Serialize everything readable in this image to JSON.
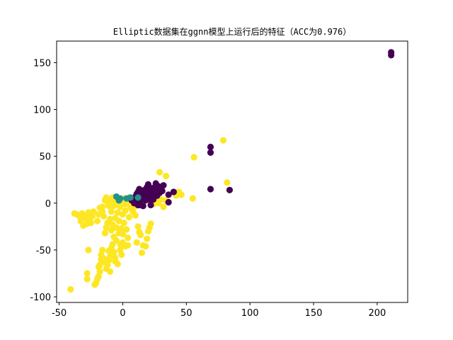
{
  "chart_data": {
    "type": "scatter",
    "title": "Elliptic数据集在ggnn模型上运行后的特征（ACC为0.976）",
    "xlabel": "",
    "ylabel": "",
    "xlim": [
      -52,
      224
    ],
    "ylim": [
      -106,
      173
    ],
    "xticks": [
      -50,
      0,
      50,
      100,
      150,
      200
    ],
    "yticks": [
      -100,
      -50,
      0,
      50,
      100,
      150
    ],
    "xtick_labels": [
      "-50",
      "0",
      "50",
      "100",
      "150",
      "200"
    ],
    "ytick_labels": [
      "-100",
      "-50",
      "0",
      "50",
      "100",
      "150"
    ],
    "grid": false,
    "legend": "none",
    "colors": {
      "yellow": "#fde725",
      "purple": "#440154",
      "teal": "#21918c"
    },
    "series": [
      {
        "color": "#fde725",
        "points": [
          [
            -41,
            -92
          ],
          [
            -38,
            -11
          ],
          [
            -36,
            -12
          ],
          [
            -34,
            -14
          ],
          [
            -33,
            -19
          ],
          [
            -32,
            -11
          ],
          [
            -31,
            -24
          ],
          [
            -30,
            -16
          ],
          [
            -29,
            -13
          ],
          [
            -28,
            -22
          ],
          [
            -27,
            -50
          ],
          [
            -28,
            -75
          ],
          [
            -28,
            -81
          ],
          [
            -27,
            -10
          ],
          [
            -26,
            -17
          ],
          [
            -25,
            -21
          ],
          [
            -24,
            -14
          ],
          [
            -23,
            -9
          ],
          [
            -22,
            -87
          ],
          [
            -21,
            -85
          ],
          [
            -20,
            -81
          ],
          [
            -19,
            -78
          ],
          [
            -18,
            -73
          ],
          [
            -18,
            -66
          ],
          [
            -17,
            -60
          ],
          [
            -17,
            -55
          ],
          [
            -16,
            -50
          ],
          [
            -19,
            -68
          ],
          [
            -15,
            -59
          ],
          [
            -14,
            -63
          ],
          [
            -13,
            -70
          ],
          [
            -12,
            -66
          ],
          [
            -11,
            -61
          ],
          [
            -10,
            -57
          ],
          [
            -11,
            -51
          ],
          [
            -9,
            -48
          ],
          [
            -8,
            -55
          ],
          [
            -7,
            -52
          ],
          [
            -6,
            -58
          ],
          [
            -8,
            -44
          ],
          [
            -20,
            -19
          ],
          [
            -19,
            -12
          ],
          [
            -18,
            -5
          ],
          [
            -16,
            -9
          ],
          [
            -15,
            -14
          ],
          [
            -14,
            -32
          ],
          [
            -13,
            -26
          ],
          [
            -12,
            -21
          ],
          [
            -11,
            -3
          ],
          [
            -10,
            -17
          ],
          [
            -9,
            -29
          ],
          [
            -9,
            -9
          ],
          [
            -8,
            -23
          ],
          [
            -7,
            -36
          ],
          [
            -7,
            -3
          ],
          [
            -6,
            -16
          ],
          [
            -5,
            -40
          ],
          [
            -5,
            -26
          ],
          [
            -4,
            -10
          ],
          [
            -3,
            -32
          ],
          [
            -3,
            -19
          ],
          [
            -2,
            -44
          ],
          [
            -2,
            -4
          ],
          [
            -1,
            -27
          ],
          [
            0,
            -12
          ],
          [
            0,
            -33
          ],
          [
            1,
            -21
          ],
          [
            2,
            -8
          ],
          [
            3,
            -28
          ],
          [
            4,
            -37
          ],
          [
            5,
            -15
          ],
          [
            -2,
            -50
          ],
          [
            -1,
            -46
          ],
          [
            0,
            -42
          ],
          [
            2,
            -46
          ],
          [
            4,
            -45
          ],
          [
            -1,
            -55
          ],
          [
            -6,
            -62
          ],
          [
            -4,
            -65
          ],
          [
            -10,
            -73
          ],
          [
            -16,
            -4
          ],
          [
            -14,
            3
          ],
          [
            -13,
            6
          ],
          [
            -12,
            1
          ],
          [
            -11,
            -1
          ],
          [
            -10,
            4
          ],
          [
            -9,
            2
          ],
          [
            -8,
            6
          ],
          [
            -7,
            0
          ],
          [
            -6,
            3
          ],
          [
            -5,
            -1
          ],
          [
            -4,
            5
          ],
          [
            -3,
            2
          ],
          [
            -2,
            -2
          ],
          [
            -1,
            4
          ],
          [
            0,
            1
          ],
          [
            1,
            5
          ],
          [
            2,
            -1
          ],
          [
            3,
            3
          ],
          [
            4,
            0
          ],
          [
            5,
            6
          ],
          [
            6,
            2
          ],
          [
            7,
            -2
          ],
          [
            8,
            4
          ],
          [
            9,
            1
          ],
          [
            10,
            -3
          ],
          [
            11,
            5
          ],
          [
            12,
            2
          ],
          [
            13,
            -1
          ],
          [
            14,
            4
          ],
          [
            6,
            -5
          ],
          [
            8,
            -9
          ],
          [
            10,
            -13
          ],
          [
            12,
            -25
          ],
          [
            13,
            -31
          ],
          [
            14,
            -34
          ],
          [
            16,
            -45
          ],
          [
            18,
            -46
          ],
          [
            19,
            -38
          ],
          [
            20,
            -30
          ],
          [
            21,
            -26
          ],
          [
            22,
            -22
          ],
          [
            24,
            -1
          ],
          [
            26,
            3
          ],
          [
            28,
            0
          ],
          [
            30,
            4
          ],
          [
            32,
            -4
          ],
          [
            34,
            3
          ],
          [
            29,
            33
          ],
          [
            34,
            29
          ],
          [
            42,
            8
          ],
          [
            44,
            12
          ],
          [
            46,
            9
          ],
          [
            55,
            5
          ],
          [
            56,
            49
          ],
          [
            79,
            67
          ],
          [
            82,
            22
          ],
          [
            15,
            -53
          ],
          [
            11,
            -42
          ]
        ]
      },
      {
        "color": "#440154",
        "points": [
          [
            211,
            161
          ],
          [
            211,
            158
          ],
          [
            69,
            60
          ],
          [
            69,
            54
          ],
          [
            69,
            15
          ],
          [
            84,
            14
          ],
          [
            7,
            3
          ],
          [
            9,
            5
          ],
          [
            10,
            7
          ],
          [
            11,
            10
          ],
          [
            12,
            12
          ],
          [
            13,
            15
          ],
          [
            14,
            9
          ],
          [
            15,
            12
          ],
          [
            16,
            6
          ],
          [
            17,
            14
          ],
          [
            18,
            10
          ],
          [
            19,
            17
          ],
          [
            20,
            20
          ],
          [
            21,
            13
          ],
          [
            22,
            16
          ],
          [
            23,
            9
          ],
          [
            24,
            11
          ],
          [
            25,
            17
          ],
          [
            26,
            14
          ],
          [
            27,
            8
          ],
          [
            28,
            18
          ],
          [
            29,
            11
          ],
          [
            30,
            16
          ],
          [
            31,
            13
          ],
          [
            32,
            19
          ],
          [
            36,
            9
          ],
          [
            36,
            1
          ],
          [
            40,
            12
          ],
          [
            24,
            4
          ],
          [
            20,
            6
          ],
          [
            18,
            3
          ],
          [
            14,
            3
          ],
          [
            12,
            -2
          ],
          [
            16,
            -3
          ],
          [
            22,
            -2
          ],
          [
            26,
            21
          ],
          [
            15,
            7
          ],
          [
            23,
            14
          ],
          [
            27,
            12
          ],
          [
            21,
            4
          ],
          [
            9,
            0
          ],
          [
            11,
            2
          ],
          [
            13,
            -2
          ]
        ]
      },
      {
        "color": "#21918c",
        "points": [
          [
            -5,
            7
          ],
          [
            -2,
            5
          ],
          [
            -3,
            3
          ],
          [
            3,
            5
          ],
          [
            6,
            6
          ],
          [
            12,
            6
          ]
        ]
      }
    ]
  }
}
